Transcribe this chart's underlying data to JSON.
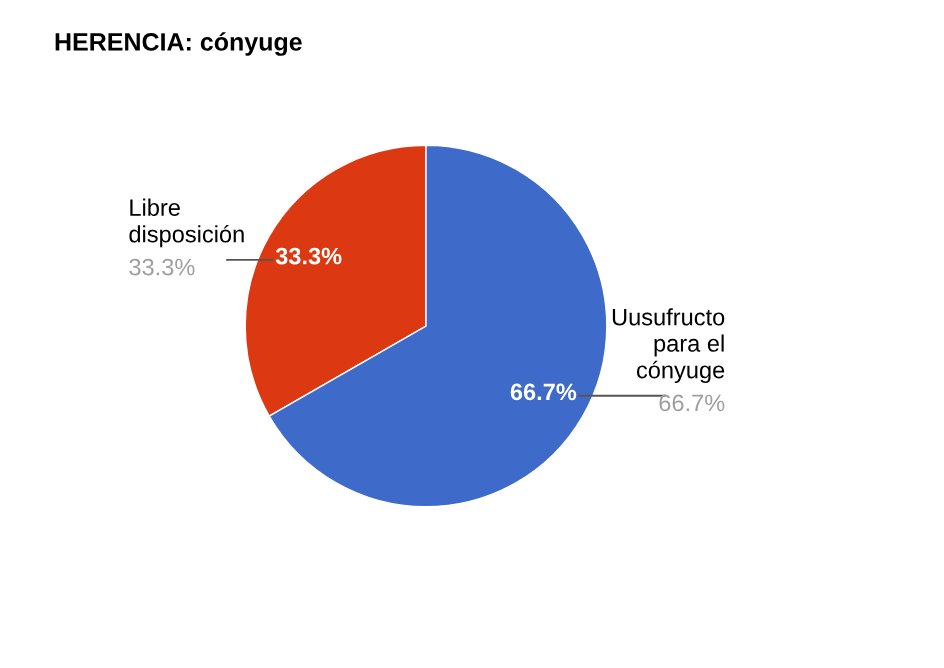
{
  "chart_data": {
    "type": "pie",
    "title": "HERENCIA: cónyuge",
    "categories": [
      "Libre\ndisposición",
      "Uusufructo\npara el\ncónyuge"
    ],
    "values": [
      33.3,
      66.7
    ],
    "colors": [
      "#dc3912",
      "#3e6bc9"
    ],
    "value_labels": [
      "33.3%",
      "66.7%"
    ]
  }
}
